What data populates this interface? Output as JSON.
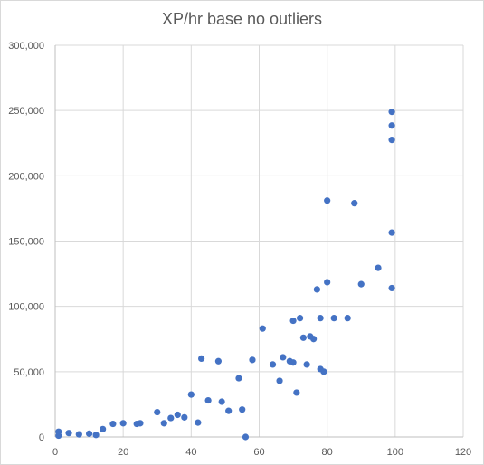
{
  "chart_data": {
    "type": "scatter",
    "title": "XP/hr base no outliers",
    "xlabel": "",
    "ylabel": "",
    "xlim": [
      0,
      120
    ],
    "ylim": [
      0,
      300000
    ],
    "x_ticks": [
      "0",
      "20",
      "40",
      "60",
      "80",
      "100",
      "120"
    ],
    "y_ticks": [
      "0",
      "50,000",
      "100,000",
      "150,000",
      "200,000",
      "250,000",
      "300,000"
    ],
    "grid": "horizontal and vertical",
    "legend": "none",
    "marker_color": "#4472C4",
    "series": [
      {
        "points": [
          [
            1,
            1000
          ],
          [
            1,
            4000
          ],
          [
            4,
            3000
          ],
          [
            7,
            2000
          ],
          [
            10,
            2500
          ],
          [
            12,
            1500
          ],
          [
            14,
            6000
          ],
          [
            17,
            10000
          ],
          [
            20,
            10500
          ],
          [
            24,
            10000
          ],
          [
            25,
            10500
          ],
          [
            30,
            19000
          ],
          [
            32,
            10500
          ],
          [
            34,
            14500
          ],
          [
            36,
            17000
          ],
          [
            38,
            15000
          ],
          [
            40,
            32500
          ],
          [
            42,
            11000
          ],
          [
            43,
            60000
          ],
          [
            45,
            28000
          ],
          [
            48,
            58000
          ],
          [
            49,
            27000
          ],
          [
            51,
            20000
          ],
          [
            54,
            45000
          ],
          [
            55,
            21000
          ],
          [
            56,
            0
          ],
          [
            58,
            59000
          ],
          [
            61,
            83000
          ],
          [
            64,
            55500
          ],
          [
            66,
            43000
          ],
          [
            67,
            61000
          ],
          [
            69,
            58000
          ],
          [
            70,
            89000
          ],
          [
            70,
            57000
          ],
          [
            71,
            34000
          ],
          [
            72,
            91000
          ],
          [
            73,
            76000
          ],
          [
            74,
            55500
          ],
          [
            75,
            77000
          ],
          [
            76,
            75000
          ],
          [
            77,
            113000
          ],
          [
            78,
            91000
          ],
          [
            78,
            52000
          ],
          [
            79,
            50000
          ],
          [
            80,
            118500
          ],
          [
            80,
            181000
          ],
          [
            82,
            91000
          ],
          [
            86,
            91000
          ],
          [
            88,
            179000
          ],
          [
            90,
            117000
          ],
          [
            95,
            129500
          ],
          [
            99,
            249000
          ],
          [
            99,
            238500
          ],
          [
            99,
            227500
          ],
          [
            99,
            156500
          ],
          [
            99,
            114000
          ]
        ]
      }
    ]
  }
}
